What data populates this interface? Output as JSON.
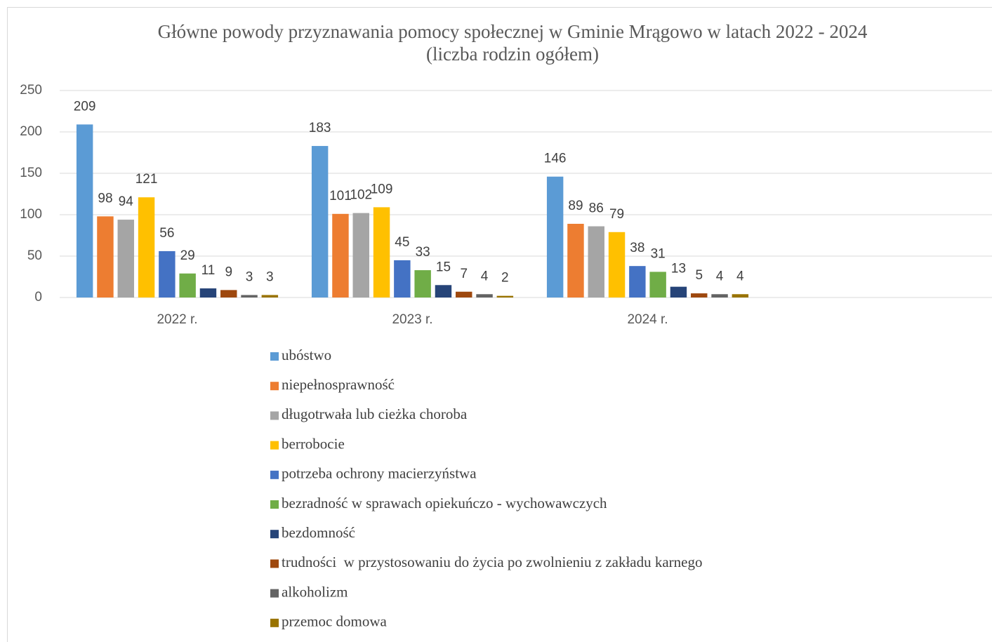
{
  "chart_data": {
    "type": "bar",
    "title": "Główne powody przyznawania pomocy społecznej w Gminie Mrągowo w latach 2022 - 2024",
    "subtitle": "(liczba rodzin ogółem)",
    "categories": [
      "2022 r.",
      "2023 r.",
      "2024 r.",
      null
    ],
    "series": [
      {
        "name": "ubóstwo",
        "color": "#5b9bd5",
        "values": [
          209,
          183,
          146,
          null
        ]
      },
      {
        "name": "niepełnosprawność",
        "color": "#ed7d31",
        "values": [
          98,
          101,
          89,
          null
        ]
      },
      {
        "name": "długotrwała lub cieżka choroba",
        "color": "#a5a5a5",
        "values": [
          94,
          102,
          86,
          null
        ]
      },
      {
        "name": "berrobocie",
        "color": "#ffc000",
        "values": [
          121,
          109,
          79,
          null
        ]
      },
      {
        "name": "potrzeba ochrony macierzyństwa",
        "color": "#4472c4",
        "values": [
          56,
          45,
          38,
          null
        ]
      },
      {
        "name": "bezradność w sprawach opiekuńczo - wychowawczych",
        "color": "#70ad47",
        "values": [
          29,
          33,
          31,
          null
        ]
      },
      {
        "name": "bezdomność",
        "color": "#264478",
        "values": [
          11,
          15,
          13,
          null
        ]
      },
      {
        "name": "trudności  w przystosowaniu do życia po zwolnieniu z zakładu karnego",
        "color": "#9e480e",
        "values": [
          9,
          7,
          5,
          null
        ]
      },
      {
        "name": "alkoholizm",
        "color": "#636363",
        "values": [
          3,
          4,
          4,
          null
        ]
      },
      {
        "name": "przemoc domowa",
        "color": "#997300",
        "values": [
          3,
          2,
          4,
          null
        ]
      }
    ],
    "ylim": [
      0,
      250
    ],
    "yticks": [
      0,
      50,
      100,
      150,
      200,
      250
    ],
    "grid": true,
    "legend": "bottom"
  }
}
